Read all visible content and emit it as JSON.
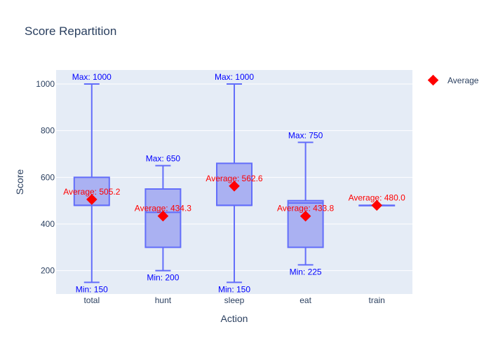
{
  "chart_data": {
    "type": "box",
    "title": "Score Repartition",
    "xlabel": "Action",
    "ylabel": "Score",
    "categories": [
      "total",
      "hunt",
      "sleep",
      "eat",
      "train"
    ],
    "ylim": [
      100,
      1060
    ],
    "yticks": [
      200,
      400,
      600,
      800,
      1000
    ],
    "grid": true,
    "boxes": [
      {
        "category": "total",
        "min": 150,
        "q1": 480,
        "median": 480,
        "q3": 600,
        "max": 1000,
        "mean": 505.2
      },
      {
        "category": "hunt",
        "min": 200,
        "q1": 300,
        "median": 450,
        "q3": 550,
        "max": 650,
        "mean": 434.3
      },
      {
        "category": "sleep",
        "min": 150,
        "q1": 480,
        "median": 480,
        "q3": 660,
        "max": 1000,
        "mean": 562.6
      },
      {
        "category": "eat",
        "min": 225,
        "q1": 300,
        "median": 490,
        "q3": 500,
        "max": 750,
        "mean": 433.8
      },
      {
        "category": "train",
        "min": 480,
        "q1": 480,
        "median": 480,
        "q3": 480,
        "max": 480,
        "mean": 480.0
      }
    ],
    "annotations": {
      "max_labels": [
        {
          "category": "total",
          "text": "Max: 1000"
        },
        {
          "category": "hunt",
          "text": "Max: 650"
        },
        {
          "category": "sleep",
          "text": "Max: 1000"
        },
        {
          "category": "eat",
          "text": "Max: 750"
        }
      ],
      "min_labels": [
        {
          "category": "total",
          "text": "Min: 150"
        },
        {
          "category": "hunt",
          "text": "Min: 200"
        },
        {
          "category": "sleep",
          "text": "Min: 150"
        },
        {
          "category": "eat",
          "text": "Min: 225"
        }
      ],
      "average_labels": [
        {
          "category": "total",
          "text": "Average: 505.2"
        },
        {
          "category": "hunt",
          "text": "Average: 434.3"
        },
        {
          "category": "sleep",
          "text": "Average: 562.6"
        },
        {
          "category": "eat",
          "text": "Average: 433.8"
        },
        {
          "category": "train",
          "text": "Average: 480.0"
        }
      ]
    },
    "legend": {
      "entries": [
        "Average"
      ],
      "placement": "top-right"
    },
    "colors": {
      "box_fill": "#aab1f2",
      "box_line": "#636efa",
      "average_marker": "#ff0000",
      "annotation_blue": "#0000ff",
      "annotation_red": "#ff0000",
      "plot_bg": "#e5ecf6"
    }
  }
}
